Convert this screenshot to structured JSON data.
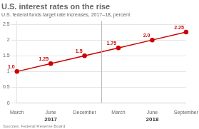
{
  "chart_data": {
    "type": "line",
    "title": "U.S. interest rates on the rise",
    "subtitle": "U.S. federal funds target rate increases, 2017–18, percent",
    "source": "Sources: Federal Reserve Board",
    "categories": [
      "March",
      "June",
      "December",
      "March",
      "June",
      "September"
    ],
    "annotations": [
      "2017",
      "2018"
    ],
    "values": [
      1.0,
      1.25,
      1.5,
      1.75,
      2.0,
      2.25
    ],
    "value_labels": [
      "1.0",
      "1.25",
      "1.5",
      "1.75",
      "2.0",
      "2.25"
    ],
    "data_labels": true,
    "color": "#cc0000",
    "ylim": [
      0,
      2.6
    ],
    "yticks": [
      0,
      0.5,
      1.0,
      1.5,
      2.0,
      2.5
    ],
    "grid": true
  }
}
